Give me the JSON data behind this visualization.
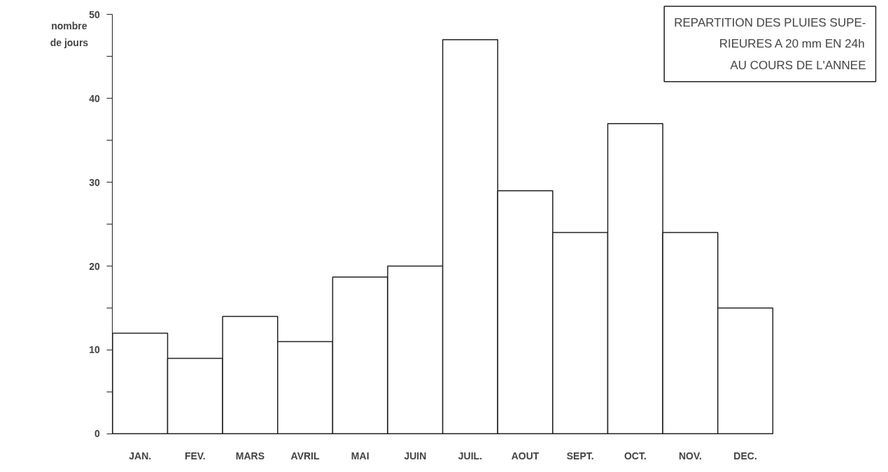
{
  "chart_data": {
    "type": "bar",
    "title": "REPARTITION DES PLUIES SUPE-\nRIEURES A 20 mm EN 24h\nAU COURS DE L'ANNEE",
    "ylabel": "nombre\nde jours",
    "categories": [
      "JAN.",
      "FEV.",
      "MARS",
      "AVRIL",
      "MAI",
      "JUIN",
      "JUIL.",
      "AOUT",
      "SEPT.",
      "OCT.",
      "NOV.",
      "DEC."
    ],
    "values": [
      12,
      9,
      14,
      11,
      18.7,
      20,
      47,
      29,
      24,
      37,
      24,
      15
    ],
    "color": "#ffffff",
    "ylim": [
      0,
      50
    ],
    "yticks": [
      0,
      {
        "value": 5,
        "label": null
      },
      10,
      {
        "value": 15,
        "label": null
      },
      20,
      {
        "value": 25,
        "label": null
      },
      30,
      {
        "value": 35,
        "label": null
      },
      40,
      {
        "value": 45,
        "label": null
      },
      50
    ],
    "grid": false
  }
}
